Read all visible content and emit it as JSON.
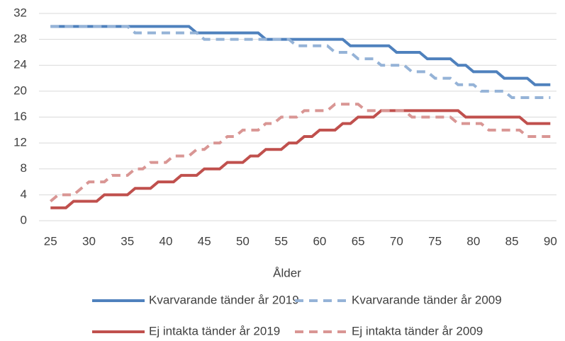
{
  "chart_data": {
    "type": "line",
    "x": [
      25,
      26,
      27,
      28,
      29,
      30,
      31,
      32,
      33,
      34,
      35,
      36,
      37,
      38,
      39,
      40,
      41,
      42,
      43,
      44,
      45,
      46,
      47,
      48,
      49,
      50,
      51,
      52,
      53,
      54,
      55,
      56,
      57,
      58,
      59,
      60,
      61,
      62,
      63,
      64,
      65,
      66,
      67,
      68,
      69,
      70,
      71,
      72,
      73,
      74,
      75,
      76,
      77,
      78,
      79,
      80,
      81,
      82,
      83,
      84,
      85,
      86,
      87,
      88,
      89,
      90
    ],
    "x_label": "Ålder",
    "series": [
      {
        "name": "Kvarvarande tänder år 2019",
        "color": "#4f81bd",
        "dashed": false,
        "values": [
          30,
          30,
          30,
          30,
          30,
          30,
          30,
          30,
          30,
          30,
          30,
          30,
          30,
          30,
          30,
          30,
          30,
          30,
          30,
          29,
          29,
          29,
          29,
          29,
          29,
          29,
          29,
          29,
          28,
          28,
          28,
          28,
          28,
          28,
          28,
          28,
          28,
          28,
          28,
          27,
          27,
          27,
          27,
          27,
          27,
          26,
          26,
          26,
          26,
          25,
          25,
          25,
          25,
          24,
          24,
          23,
          23,
          23,
          23,
          22,
          22,
          22,
          22,
          21,
          21,
          21
        ]
      },
      {
        "name": "Kvarvarande tänder år 2009",
        "color": "#95b3d7",
        "dashed": true,
        "values": [
          30,
          30,
          30,
          30,
          30,
          30,
          30,
          30,
          30,
          30,
          30,
          29,
          29,
          29,
          29,
          29,
          29,
          29,
          29,
          29,
          28,
          28,
          28,
          28,
          28,
          28,
          28,
          28,
          28,
          28,
          28,
          28,
          27,
          27,
          27,
          27,
          27,
          26,
          26,
          26,
          25,
          25,
          25,
          24,
          24,
          24,
          24,
          23,
          23,
          23,
          22,
          22,
          22,
          21,
          21,
          21,
          20,
          20,
          20,
          20,
          19,
          19,
          19,
          19,
          19,
          19
        ]
      },
      {
        "name": "Ej intakta tänder år 2019",
        "color": "#c0504d",
        "dashed": false,
        "values": [
          2,
          2,
          2,
          3,
          3,
          3,
          3,
          4,
          4,
          4,
          4,
          5,
          5,
          5,
          6,
          6,
          6,
          7,
          7,
          7,
          8,
          8,
          8,
          9,
          9,
          9,
          10,
          10,
          11,
          11,
          11,
          12,
          12,
          13,
          13,
          14,
          14,
          14,
          15,
          15,
          16,
          16,
          16,
          17,
          17,
          17,
          17,
          17,
          17,
          17,
          17,
          17,
          17,
          17,
          16,
          16,
          16,
          16,
          16,
          16,
          16,
          16,
          15,
          15,
          15,
          15
        ]
      },
      {
        "name": "Ej intakta tänder år 2009",
        "color": "#d99694",
        "dashed": true,
        "values": [
          3,
          4,
          4,
          4,
          5,
          6,
          6,
          6,
          7,
          7,
          7,
          8,
          8,
          9,
          9,
          9,
          10,
          10,
          10,
          11,
          11,
          12,
          12,
          13,
          13,
          14,
          14,
          14,
          15,
          15,
          16,
          16,
          16,
          17,
          17,
          17,
          17,
          18,
          18,
          18,
          18,
          17,
          17,
          17,
          17,
          17,
          17,
          16,
          16,
          16,
          16,
          16,
          16,
          15,
          15,
          15,
          15,
          14,
          14,
          14,
          14,
          14,
          13,
          13,
          13,
          13
        ]
      }
    ],
    "xlim": [
      23.5,
      90.8
    ],
    "xticks": [
      25,
      30,
      35,
      40,
      45,
      50,
      55,
      60,
      65,
      70,
      75,
      80,
      85,
      90
    ],
    "ylim": [
      0,
      32
    ],
    "yticks": [
      0,
      4,
      8,
      12,
      16,
      20,
      24,
      28,
      32
    ],
    "grid": true,
    "legend": "bottom"
  }
}
